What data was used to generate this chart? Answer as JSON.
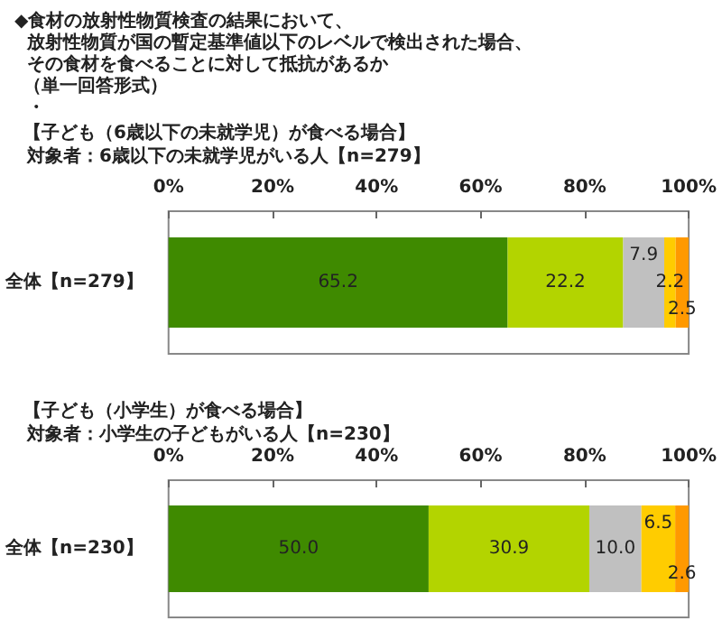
{
  "chart_data": [
    {
      "type": "bar",
      "orientation": "horizontal",
      "stacked": true,
      "title": "◆食材の放射性物質検査の結果において、",
      "annotations": [
        "放射性物質が国の暫定基準値以下のレベルで検出された場合、",
        "その食材を食べることに対して抵抗があるか",
        "（単一回答形式）",
        "・",
        "【子ども（6歳以下の未就学児）が食べる場合】",
        "対象者：6歳以下の未就学児がいる人【n=279】"
      ],
      "categories": [
        "全体【n=279】"
      ],
      "series": [
        {
          "color": "#3f8a00",
          "values": [
            65.2
          ],
          "value_labels": [
            "65.2"
          ]
        },
        {
          "color": "#b3d400",
          "values": [
            22.2
          ],
          "value_labels": [
            "22.2"
          ]
        },
        {
          "color": "#c0c0c0",
          "values": [
            7.9
          ],
          "value_labels": [
            "7.9"
          ]
        },
        {
          "color": "#ffcc00",
          "values": [
            2.2
          ],
          "value_labels": [
            "2.2"
          ]
        },
        {
          "color": "#ff9900",
          "values": [
            2.5
          ],
          "value_labels": [
            "2.5"
          ]
        }
      ],
      "xlim": [
        0,
        100
      ],
      "xticks": [
        {
          "value": 0,
          "label": "0%"
        },
        {
          "value": 20,
          "label": "20%"
        },
        {
          "value": 40,
          "label": "40%"
        },
        {
          "value": 60,
          "label": "60%"
        },
        {
          "value": 80,
          "label": "80%"
        },
        {
          "value": 100,
          "label": "100%"
        }
      ]
    },
    {
      "type": "bar",
      "orientation": "horizontal",
      "stacked": true,
      "title": "【子ども（小学生）が食べる場合】",
      "subtitle": "対象者：小学生の子どもがいる人【n=230】",
      "categories": [
        "全体【n=230】"
      ],
      "series": [
        {
          "color": "#3f8a00",
          "values": [
            50.0
          ],
          "value_labels": [
            "50.0"
          ]
        },
        {
          "color": "#b3d400",
          "values": [
            30.9
          ],
          "value_labels": [
            "30.9"
          ]
        },
        {
          "color": "#c0c0c0",
          "values": [
            10.0
          ],
          "value_labels": [
            "10.0"
          ]
        },
        {
          "color": "#ffcc00",
          "values": [
            6.5
          ],
          "value_labels": [
            "6.5"
          ]
        },
        {
          "color": "#ff9900",
          "values": [
            2.6
          ],
          "value_labels": [
            "2.6"
          ]
        }
      ],
      "xlim": [
        0,
        100
      ],
      "xticks": [
        {
          "value": 0,
          "label": "0%"
        },
        {
          "value": 20,
          "label": "20%"
        },
        {
          "value": 40,
          "label": "40%"
        },
        {
          "value": 60,
          "label": "60%"
        },
        {
          "value": 80,
          "label": "80%"
        },
        {
          "value": 100,
          "label": "100%"
        }
      ]
    }
  ]
}
